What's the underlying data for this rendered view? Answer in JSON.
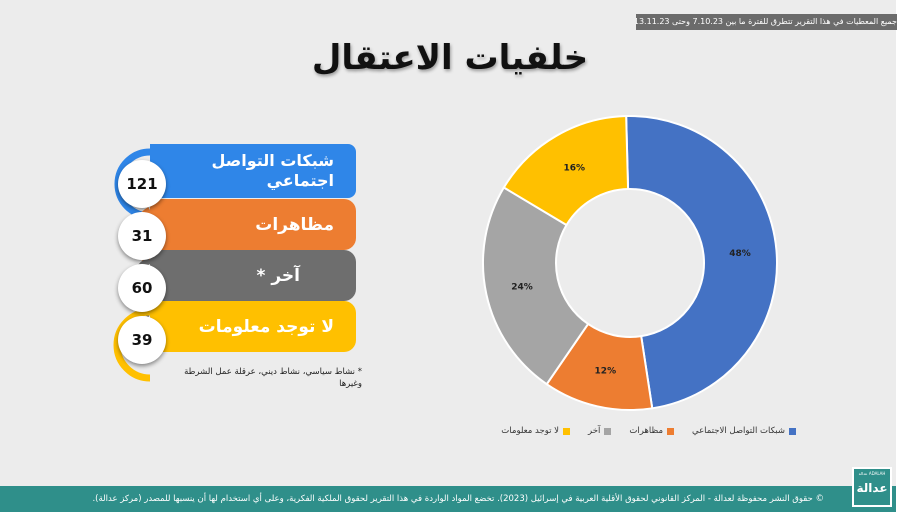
{
  "top_note": "جميع المعطيات في هذا التقرير تتطرق للفترة ما بين 7.10.23 وحتى 13.11.23",
  "title": "خلفيات الاعتقال",
  "categories": [
    {
      "label": "شبكات التواصل اجتماعي",
      "count": "121",
      "color": "#2f86e8"
    },
    {
      "label": "مظاهرات",
      "count": "31",
      "color": "#ed7d31"
    },
    {
      "label": "آخر *",
      "count": "60",
      "color": "#6e6e6e"
    },
    {
      "label": "لا توجد معلومات",
      "count": "39",
      "color": "#ffc000"
    }
  ],
  "footnote": "* نشاط سياسي، نشاط ديني، عرقلة عمل الشرطة وغيرها",
  "chart_data": {
    "type": "pie",
    "donut": true,
    "categories": [
      "شبكات التواصل الاجتماعي",
      "مظاهرات",
      "آخر",
      "لا توجد معلومات"
    ],
    "values": [
      48,
      12,
      24,
      16
    ],
    "labels": [
      "48%",
      "12%",
      "24%",
      "16%"
    ],
    "colors": [
      "#4472c4",
      "#ed7d31",
      "#a5a5a5",
      "#ffc000"
    ],
    "legend_position": "bottom"
  },
  "footer": "© حقوق النشر محفوظة لعدالة - المركز القانوني لحقوق الأقلية العربية في إسرائيل (2023). تخضع المواد الواردة في هذا التقرير لحقوق الملكية الفكرية، وعلى أي استخدام لها أن ينسبها للمصدر (مركز عدالة).",
  "logo_text": "عدالة",
  "logo_small": "عدالة ADALAH"
}
